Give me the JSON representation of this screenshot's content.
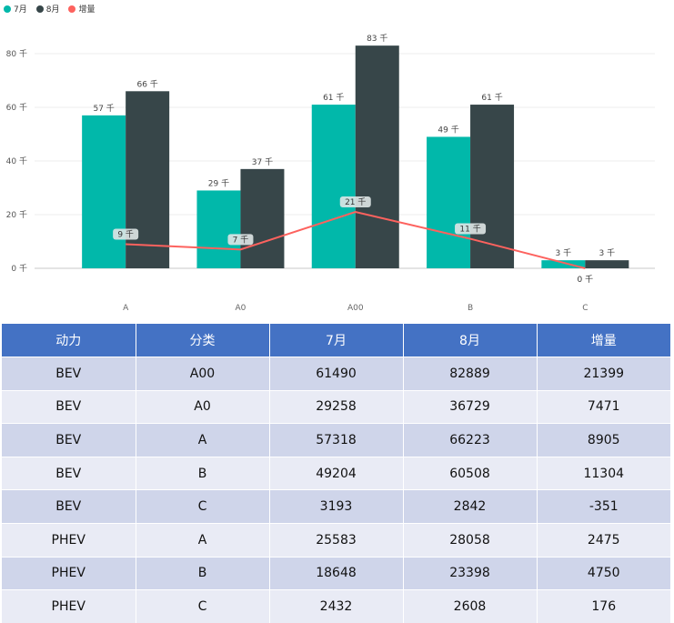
{
  "chart_data": {
    "type": "bar",
    "categories": [
      "A",
      "A0",
      "A00",
      "B",
      "C"
    ],
    "series": [
      {
        "name": "7月",
        "type": "bar",
        "values": [
          57,
          29,
          61,
          49,
          3
        ],
        "labels": [
          "57 千",
          "29 千",
          "61 千",
          "49 千",
          "3 千"
        ]
      },
      {
        "name": "8月",
        "type": "bar",
        "values": [
          66,
          37,
          83,
          61,
          3
        ],
        "labels": [
          "66 千",
          "37 千",
          "83 千",
          "61 千",
          "3 千"
        ]
      },
      {
        "name": "增量",
        "type": "line",
        "values": [
          9,
          7,
          21,
          11,
          0
        ],
        "labels": [
          "9 千",
          "7 千",
          "21 千",
          "11 千",
          "0 千"
        ]
      }
    ],
    "yticks": [
      "0 千",
      "20 千",
      "40 千",
      "60 千",
      "80 千"
    ],
    "ylim": [
      0,
      90
    ],
    "grid": true,
    "legend_position": "top-left",
    "colors": {
      "jul": "#01b8aa",
      "aug": "#374649",
      "inc": "#fd625e"
    }
  },
  "table": {
    "headers": [
      "动力",
      "分类",
      "7月",
      "8月",
      "增量"
    ],
    "rows": [
      [
        "BEV",
        "A00",
        "61490",
        "82889",
        "21399"
      ],
      [
        "BEV",
        "A0",
        "29258",
        "36729",
        "7471"
      ],
      [
        "BEV",
        "A",
        "57318",
        "66223",
        "8905"
      ],
      [
        "BEV",
        "B",
        "49204",
        "60508",
        "11304"
      ],
      [
        "BEV",
        "C",
        "3193",
        "2842",
        "-351"
      ],
      [
        "PHEV",
        "A",
        "25583",
        "28058",
        "2475"
      ],
      [
        "PHEV",
        "B",
        "18648",
        "23398",
        "4750"
      ],
      [
        "PHEV",
        "C",
        "2432",
        "2608",
        "176"
      ]
    ]
  }
}
